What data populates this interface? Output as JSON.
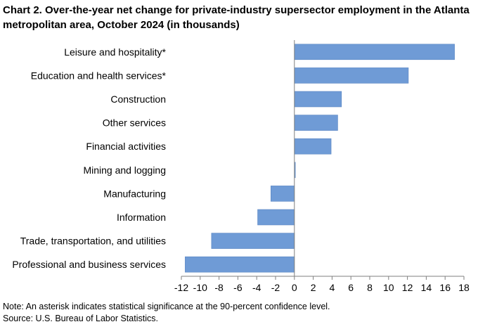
{
  "chart_data": {
    "type": "bar",
    "orientation": "horizontal",
    "title": "Chart 2. Over-the-year net change for private-industry supersector employment in the Atlanta metropolitan area, October 2024 (in thousands)",
    "categories": [
      "Leisure and hospitality*",
      "Education and health services*",
      "Construction",
      "Other services",
      "Financial activities",
      "Mining and logging",
      "Manufacturing",
      "Information",
      "Trade, transportation, and utilities",
      "Professional and business services"
    ],
    "values": [
      17.0,
      12.1,
      5.0,
      4.6,
      3.9,
      0.1,
      -2.5,
      -3.9,
      -8.8,
      -11.6
    ],
    "xlim": [
      -12,
      18
    ],
    "xticks": [
      -12,
      -10,
      -8,
      -6,
      -4,
      -2,
      0,
      2,
      4,
      6,
      8,
      10,
      12,
      14,
      16,
      18
    ],
    "xtick_labels": [
      "-12",
      "-10",
      "-8",
      "-6",
      "-4",
      "-2",
      "0",
      "2",
      "4",
      "6",
      "8",
      "10",
      "12",
      "14",
      "16",
      "18"
    ],
    "bar_color": "#6f9bd6",
    "grid": false
  },
  "notes": {
    "note": "Note: An asterisk indicates statistical significance at the 90-percent confidence level.",
    "source": "Source: U.S. Bureau of Labor Statistics."
  }
}
